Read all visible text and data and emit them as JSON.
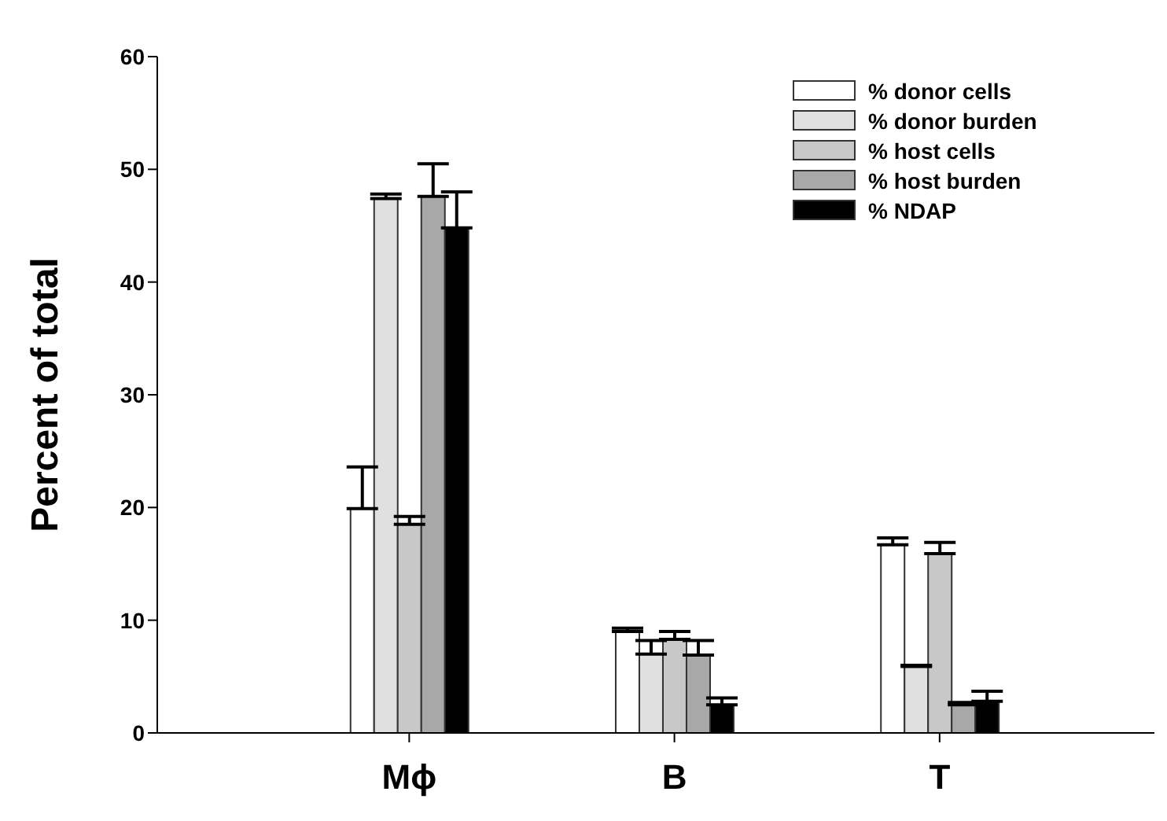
{
  "chart_data": {
    "type": "bar",
    "ylabel": "Percent of total",
    "categories": [
      "Mϕ",
      "B",
      "T"
    ],
    "ylim": [
      0,
      60
    ],
    "yticks": [
      0,
      10,
      20,
      30,
      40,
      50,
      60
    ],
    "legend": "top right",
    "series": [
      {
        "name": "% donor cells",
        "color": "#ffffff",
        "values": [
          19.9,
          9.0,
          16.7
        ],
        "errors": [
          [
            19.9,
            23.6
          ],
          [
            9.0,
            9.3
          ],
          [
            16.7,
            17.3
          ]
        ]
      },
      {
        "name": "% donor burden",
        "color": "#e0e0e0",
        "values": [
          47.4,
          7.0,
          5.9
        ],
        "errors": [
          [
            47.4,
            47.8
          ],
          [
            7.0,
            8.2
          ],
          [
            5.9,
            6.0
          ]
        ]
      },
      {
        "name": "% host cells",
        "color": "#c8c8c8",
        "values": [
          18.5,
          8.3,
          15.9
        ],
        "errors": [
          [
            18.5,
            19.2
          ],
          [
            8.3,
            9.0
          ],
          [
            15.9,
            16.9
          ]
        ]
      },
      {
        "name": "% host burden",
        "color": "#a8a8a8",
        "values": [
          47.6,
          6.9,
          2.5
        ],
        "errors": [
          [
            47.6,
            50.5
          ],
          [
            6.9,
            8.2
          ],
          [
            2.5,
            2.7
          ]
        ]
      },
      {
        "name": "% NDAP",
        "color": "#000000",
        "values": [
          44.8,
          2.5,
          2.8
        ],
        "errors": [
          [
            44.8,
            48.0
          ],
          [
            2.5,
            3.1
          ],
          [
            2.8,
            3.7
          ]
        ]
      }
    ]
  }
}
